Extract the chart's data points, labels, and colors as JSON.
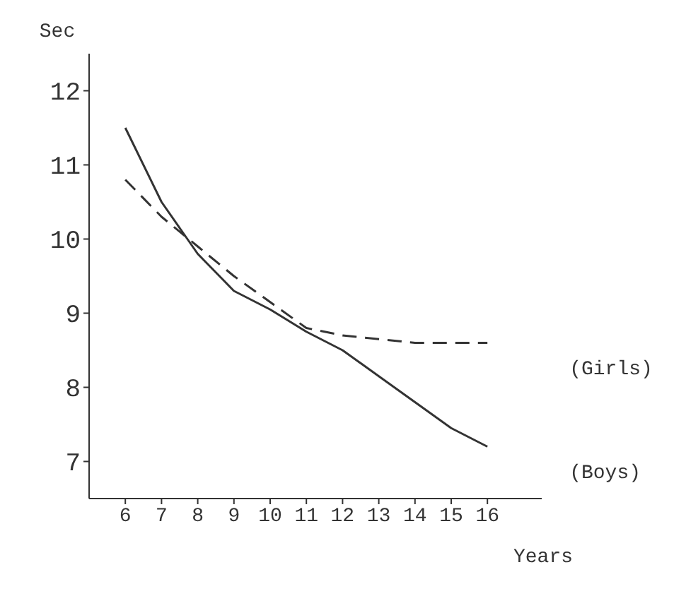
{
  "chart_data": {
    "type": "line",
    "xlabel": "Years",
    "ylabel": "Sec",
    "x": [
      6,
      7,
      8,
      9,
      10,
      11,
      12,
      13,
      14,
      15,
      16
    ],
    "series": [
      {
        "name": "(Boys)",
        "color": "#333333",
        "line_style": "solid",
        "values": [
          11.5,
          10.5,
          9.8,
          9.3,
          9.05,
          8.75,
          8.5,
          8.15,
          7.8,
          7.45,
          7.2
        ]
      },
      {
        "name": "(Girls)",
        "color": "#333333",
        "line_style": "dashed",
        "values": [
          10.8,
          10.3,
          9.9,
          9.5,
          9.15,
          8.8,
          8.7,
          8.65,
          8.6,
          8.6,
          8.6
        ]
      }
    ],
    "xlim": [
      5,
      17.5
    ],
    "xticks": [
      6,
      7,
      8,
      9,
      10,
      11,
      12,
      13,
      14,
      15,
      16
    ],
    "ylim": [
      6.5,
      12.5
    ],
    "yticks": [
      7,
      8,
      9,
      10,
      11,
      12
    ],
    "grid": false,
    "legend": false,
    "marker": "none"
  }
}
